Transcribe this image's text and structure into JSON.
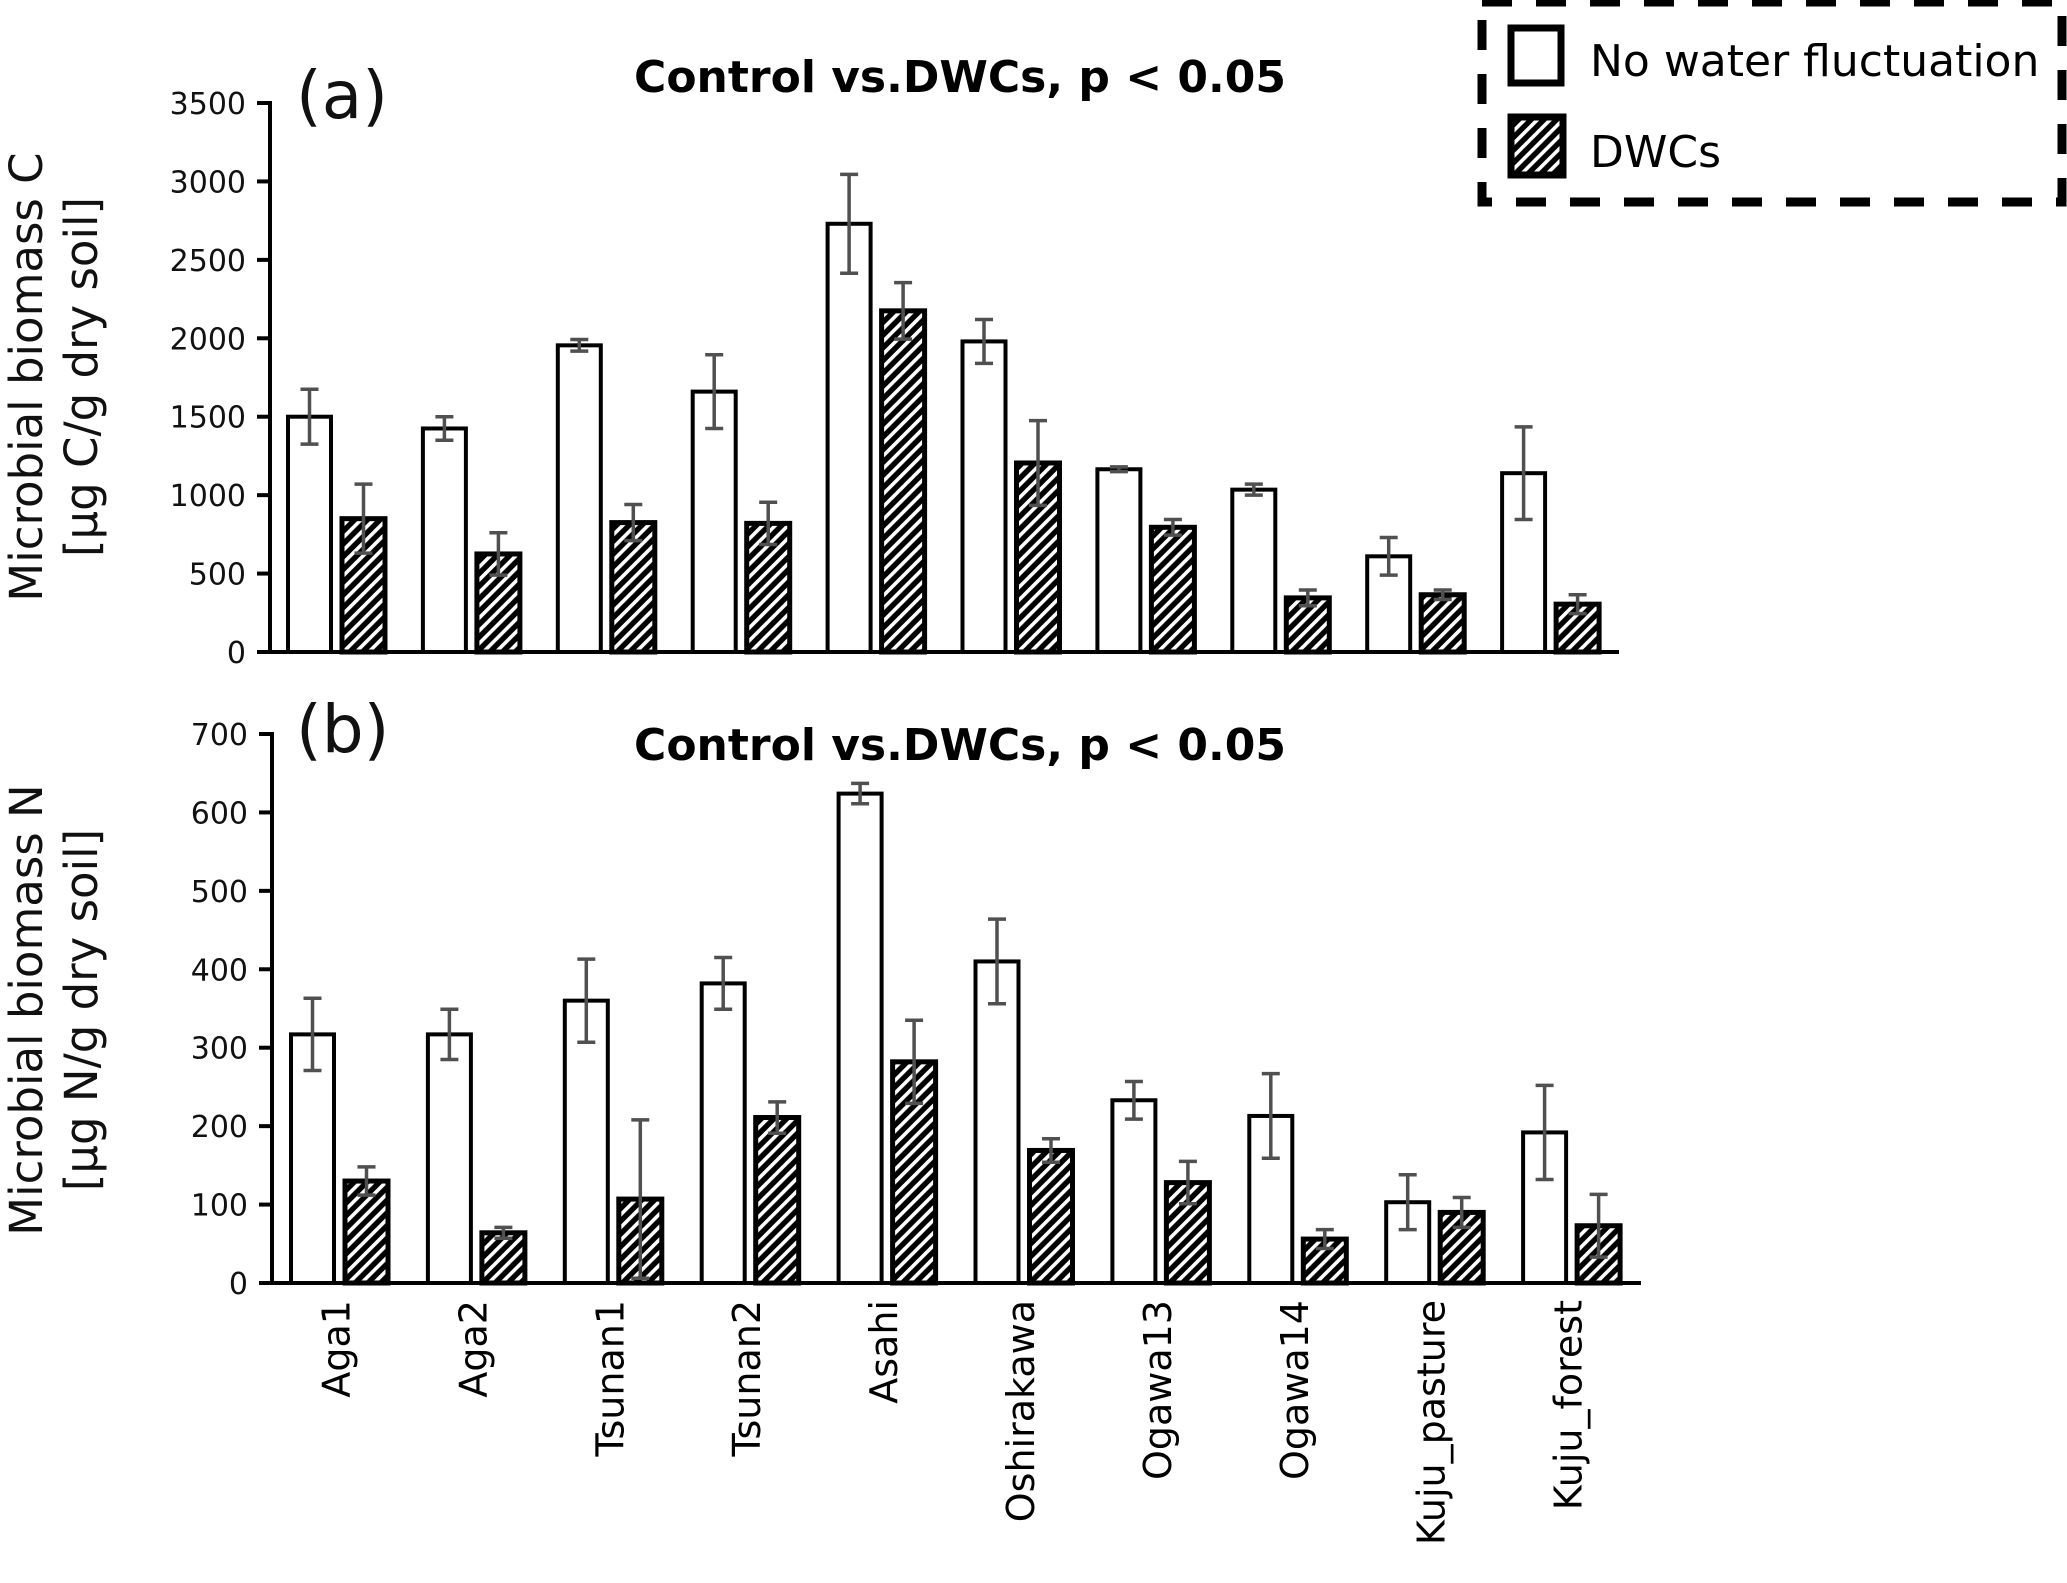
{
  "chart_data": [
    {
      "type": "bar",
      "panel_label": "(a)",
      "title": "Control vs.DWCs, p < 0.05",
      "ylabel_line1": "Microbial biomass C",
      "ylabel_line2": "[µg C/g dry soil]",
      "xlabel": "",
      "ylim": [
        0,
        3500
      ],
      "yticks": [
        0,
        500,
        1000,
        1500,
        2000,
        2500,
        3000,
        3500
      ],
      "grid": false,
      "categories": [
        "Aga1",
        "Aga2",
        "Tsunan1",
        "Tsunan2",
        "Asahi",
        "Oshirakawa",
        "Ogawa13",
        "Ogawa14",
        "Kuju_pasture",
        "Kuju_forest"
      ],
      "series": [
        {
          "name": "No water fluctuation",
          "pattern": "open",
          "values": [
            1500,
            1425,
            1955,
            1660,
            2730,
            1980,
            1165,
            1035,
            610,
            1140
          ],
          "errors": [
            175,
            75,
            37,
            235,
            315,
            140,
            15,
            35,
            120,
            295
          ]
        },
        {
          "name": "DWCs",
          "pattern": "hatched",
          "values": [
            850,
            625,
            825,
            820,
            2175,
            1205,
            795,
            345,
            365,
            305
          ],
          "errors": [
            220,
            135,
            115,
            135,
            180,
            270,
            50,
            50,
            30,
            60
          ]
        }
      ]
    },
    {
      "type": "bar",
      "panel_label": "(b)",
      "title": "Control vs.DWCs, p < 0.05",
      "ylabel_line1": "Microbial biomass N",
      "ylabel_line2": "[µg N/g dry soil]",
      "xlabel": "",
      "ylim": [
        0,
        700
      ],
      "yticks": [
        0,
        100,
        200,
        300,
        400,
        500,
        600,
        700
      ],
      "grid": false,
      "categories": [
        "Aga1",
        "Aga2",
        "Tsunan1",
        "Tsunan2",
        "Asahi",
        "Oshirakawa",
        "Ogawa13",
        "Ogawa14",
        "Kuju_pasture",
        "Kuju_forest"
      ],
      "series": [
        {
          "name": "No water fluctuation",
          "pattern": "open",
          "values": [
            317,
            317,
            360,
            382,
            624,
            410,
            233,
            213,
            103,
            192
          ],
          "errors": [
            46,
            32,
            53,
            33,
            13,
            54,
            24,
            54,
            35,
            60
          ]
        },
        {
          "name": "DWCs",
          "pattern": "hatched",
          "values": [
            130,
            64,
            107,
            211,
            282,
            169,
            128,
            56,
            90,
            73
          ],
          "errors": [
            18,
            7,
            101,
            20,
            53,
            15,
            27,
            12,
            19,
            40
          ]
        }
      ]
    }
  ],
  "legend": {
    "placement": "top-right",
    "border": "dashed",
    "items": [
      {
        "label": "No water fluctuation",
        "pattern": "open"
      },
      {
        "label": "DWCs",
        "pattern": "hatched"
      }
    ]
  },
  "colors": {
    "bar_outline": "#000000",
    "bar_fill_open": "#ffffff",
    "hatch": "#000000",
    "error_bar": "#505050",
    "axis": "#000000"
  }
}
